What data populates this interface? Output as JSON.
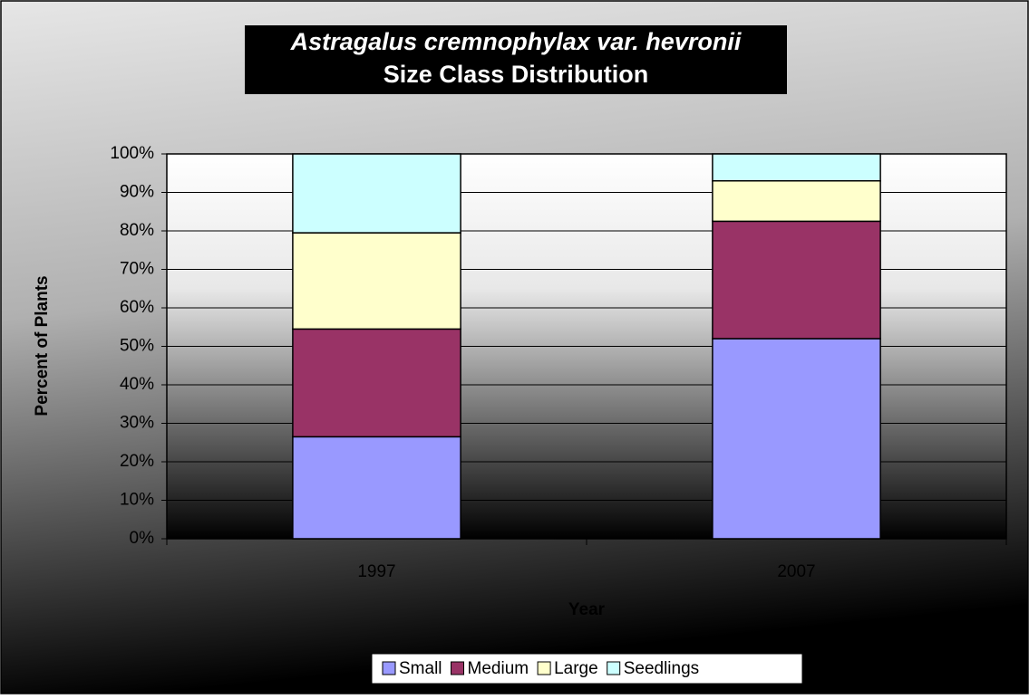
{
  "chart_data": {
    "type": "stacked_bar",
    "title": "Astragalus cremnophylax var. hevronii",
    "subtitle": "Size Class Distribution",
    "x_label": "Year",
    "y_label": "Percent of Plants",
    "categories": [
      "1997",
      "2007"
    ],
    "series": [
      {
        "name": "Small",
        "color": "#9999ff",
        "values": [
          26.5,
          52
        ]
      },
      {
        "name": "Medium",
        "color": "#993366",
        "values": [
          28,
          30.5
        ]
      },
      {
        "name": "Large",
        "color": "#ffffcc",
        "values": [
          25,
          10.5
        ]
      },
      {
        "name": "Seedlings",
        "color": "#ccffff",
        "values": [
          20.5,
          7
        ]
      }
    ],
    "ylim": [
      0,
      100
    ],
    "yticks": [
      {
        "value": 0,
        "label": "0%"
      },
      {
        "value": 10,
        "label": "10%"
      },
      {
        "value": 20,
        "label": "20%"
      },
      {
        "value": 30,
        "label": "30%"
      },
      {
        "value": 40,
        "label": "40%"
      },
      {
        "value": 50,
        "label": "50%"
      },
      {
        "value": 60,
        "label": "60%"
      },
      {
        "value": 70,
        "label": "70%"
      },
      {
        "value": 80,
        "label": "80%"
      },
      {
        "value": 90,
        "label": "90%"
      },
      {
        "value": 100,
        "label": "100%"
      }
    ],
    "grid": true,
    "legend": "bottom"
  }
}
